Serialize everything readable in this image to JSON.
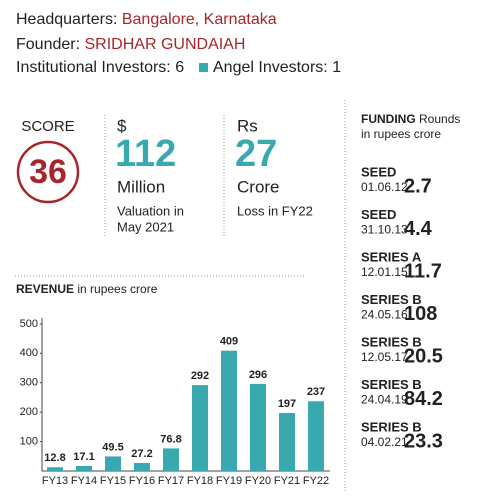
{
  "header": {
    "headquarters_label": "Headquarters:",
    "headquarters": "Bangalore, Karnataka",
    "founder_label": "Founder:",
    "founder": "SRIDHAR GUNDAIAH",
    "institutional_label": "Institutional Investors:",
    "institutional": "6",
    "angel_label": "Angel Investors:",
    "angel": "1"
  },
  "stats": {
    "score_label": "SCORE",
    "score": "36",
    "valuation_unit": "$",
    "valuation": "112",
    "valuation_scale": "Million",
    "valuation_note_1": "Valuation in",
    "valuation_note_2": "May 2021",
    "loss_unit": "Rs",
    "loss": "27",
    "loss_scale": "Crore",
    "loss_note": "Loss in FY22"
  },
  "funding": {
    "title": "FUNDING",
    "title_rest": "Rounds",
    "subtitle": "in rupees crore",
    "rounds": [
      {
        "name": "SEED",
        "date": "01.06.12",
        "amount": "2.7"
      },
      {
        "name": "SEED",
        "date": "31.10.13",
        "amount": "4.4"
      },
      {
        "name": "SERIES A",
        "date": "12.01.15",
        "amount": "11.7"
      },
      {
        "name": "SERIES B",
        "date": "24.05.16",
        "amount": "108"
      },
      {
        "name": "SERIES B",
        "date": "12.05.17",
        "amount": "20.5"
      },
      {
        "name": "SERIES B",
        "date": "24.04.19",
        "amount": "84.2"
      },
      {
        "name": "SERIES B",
        "date": "04.02.21",
        "amount": "23.3"
      }
    ]
  },
  "chart_data": {
    "type": "bar",
    "title": "REVENUE",
    "subtitle": "in rupees crore",
    "categories": [
      "FY13",
      "FY14",
      "FY15",
      "FY16",
      "FY17",
      "FY18",
      "FY19",
      "FY20",
      "FY21",
      "FY22"
    ],
    "values": [
      12.8,
      17.1,
      49.5,
      27.2,
      76.8,
      292,
      409,
      296,
      197,
      237
    ],
    "color": "#38a9ae",
    "ylim": [
      0,
      520
    ],
    "yticks": [
      100,
      200,
      300,
      400,
      500
    ],
    "grid": false
  }
}
